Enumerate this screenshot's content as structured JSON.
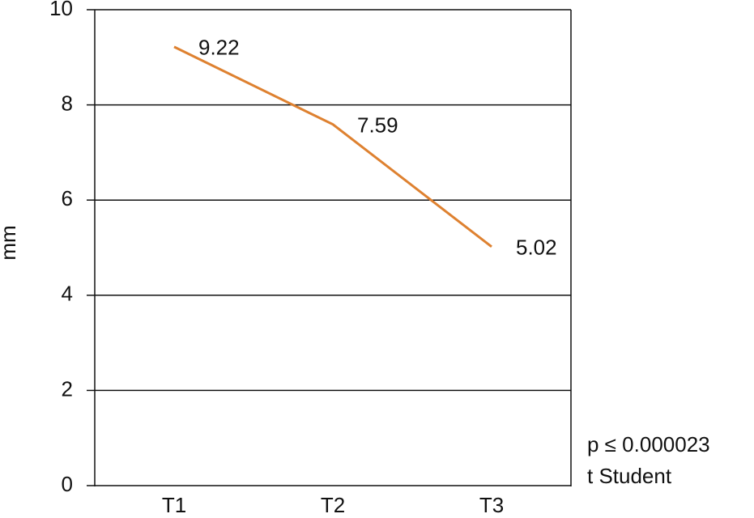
{
  "chart_data": {
    "type": "line",
    "categories": [
      "T1",
      "T2",
      "T3"
    ],
    "series": [
      {
        "name": "mm",
        "color": "#de8130",
        "values": [
          9.22,
          7.59,
          5.02
        ]
      }
    ],
    "ylabel": "mm",
    "ylim": [
      0,
      10
    ],
    "yticks": [
      0,
      2,
      4,
      6,
      8,
      10
    ],
    "grid": true,
    "annotations": [
      "p ≤ 0.000023",
      "t Student"
    ]
  }
}
